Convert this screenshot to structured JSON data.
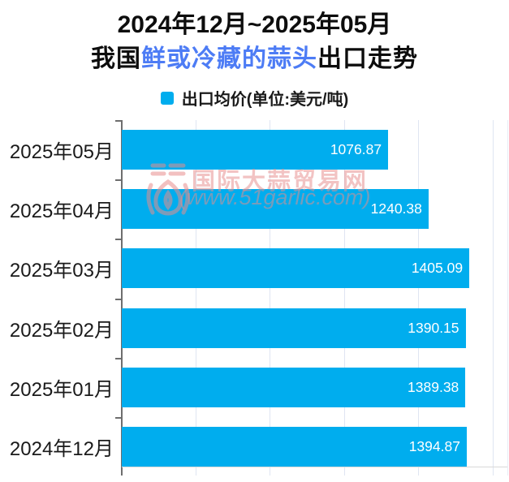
{
  "title": {
    "line1": "2024年12月~2025年05月",
    "line2_prefix": "我国",
    "line2_highlight": "鲜或冷藏的蒜头",
    "line2_suffix": "出口走势"
  },
  "legend": {
    "label": "出口均价(单位:美元/吨)",
    "swatch_color": "#00ADEE"
  },
  "watermark": {
    "name": "国际大蒜贸易网",
    "url": "(www.51garlic.com)",
    "logo_icon": "garlic-icon"
  },
  "chart_data": {
    "type": "bar",
    "orientation": "horizontal",
    "title": "2024年12月~2025年05月 我国鲜或冷藏的蒜头出口走势",
    "series_name": "出口均价",
    "unit": "美元/吨",
    "categories": [
      "2025年05月",
      "2025年04月",
      "2025年03月",
      "2025年02月",
      "2025年01月",
      "2024年12月"
    ],
    "values": [
      1076.87,
      1240.38,
      1405.09,
      1390.15,
      1389.38,
      1394.87
    ],
    "xlim": [
      0,
      1500
    ],
    "grid": true,
    "gridline_step": 300,
    "legend_position": "top",
    "bar_color": "#00ADEE",
    "value_label_color": "#ffffff"
  },
  "colors": {
    "bar": "#00ADEE",
    "title_text": "#0d0d0d",
    "highlight_text": "#4d7cf5",
    "grid_line": "#dfe5f2",
    "axis_line": "#6e6e6e",
    "bottom_line": "#d9d9d9",
    "watermark": "rgba(231,140,140,0.52)"
  }
}
